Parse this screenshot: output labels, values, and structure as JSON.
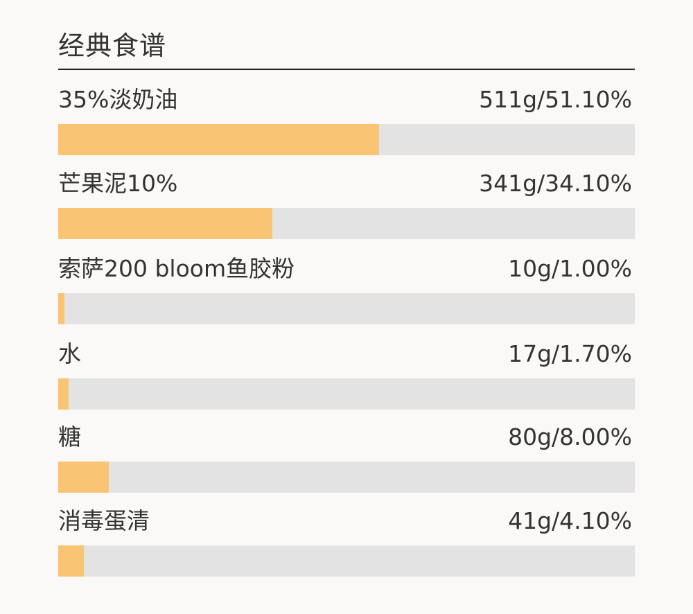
{
  "title": "经典食谱",
  "colors": {
    "bar_fill": "#f9c574",
    "track": "#e3e3e3",
    "text": "#333333",
    "rule": "#222222"
  },
  "chart_data": {
    "type": "bar",
    "orientation": "horizontal",
    "title": "经典食谱",
    "xlabel": "",
    "ylabel": "",
    "xlim": [
      0,
      100
    ],
    "grid": false,
    "categories": [
      "35%淡奶油",
      "芒果泥10%",
      "索萨200 bloom鱼胶粉",
      "水",
      "糖",
      "消毒蛋清"
    ],
    "values": [
      51.1,
      34.1,
      1.0,
      1.7,
      8.0,
      4.1
    ],
    "value_labels": [
      "511g/51.10%",
      "341g/34.10%",
      "10g/1.00%",
      "17g/1.70%",
      "80g/8.00%",
      "41g/4.10%"
    ]
  }
}
